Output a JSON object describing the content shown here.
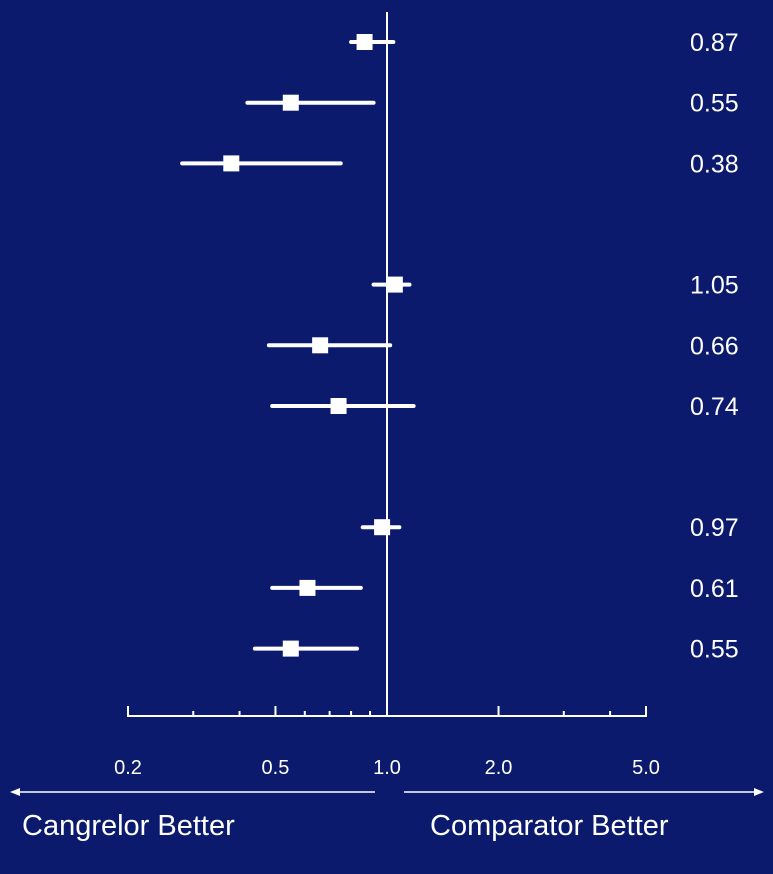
{
  "chart_data": {
    "type": "forest",
    "x_scale": "log",
    "xlim": [
      0.2,
      5.0
    ],
    "x_ticks": [
      0.2,
      0.5,
      1.0,
      2.0,
      5.0
    ],
    "x_tick_labels": [
      "0.2",
      "0.5",
      "1.0",
      "2.0",
      "5.0"
    ],
    "minor_ticks": [
      0.3,
      0.4,
      0.6,
      0.7,
      0.8,
      0.9,
      3.0,
      4.0
    ],
    "reference_line": 1.0,
    "groups": [
      {
        "points": [
          {
            "or": 0.87,
            "ci": [
              0.8,
              1.04
            ],
            "label": "0.87"
          },
          {
            "or": 0.55,
            "ci": [
              0.42,
              0.92
            ],
            "label": "0.55"
          },
          {
            "or": 0.38,
            "ci": [
              0.28,
              0.75
            ],
            "label": "0.38"
          }
        ]
      },
      {
        "points": [
          {
            "or": 1.05,
            "ci": [
              0.92,
              1.15
            ],
            "label": "1.05"
          },
          {
            "or": 0.66,
            "ci": [
              0.48,
              1.02
            ],
            "label": "0.66"
          },
          {
            "or": 0.74,
            "ci": [
              0.49,
              1.18
            ],
            "label": "0.74"
          }
        ]
      },
      {
        "points": [
          {
            "or": 0.97,
            "ci": [
              0.86,
              1.08
            ],
            "label": "0.97"
          },
          {
            "or": 0.61,
            "ci": [
              0.49,
              0.85
            ],
            "label": "0.61"
          },
          {
            "or": 0.55,
            "ci": [
              0.44,
              0.83
            ],
            "label": "0.55"
          }
        ]
      }
    ],
    "left_direction_label": "Cangrelor Better",
    "right_direction_label": "Comparator Better"
  },
  "colors": {
    "background": "#0c1a6e",
    "foreground": "#ffffff"
  }
}
